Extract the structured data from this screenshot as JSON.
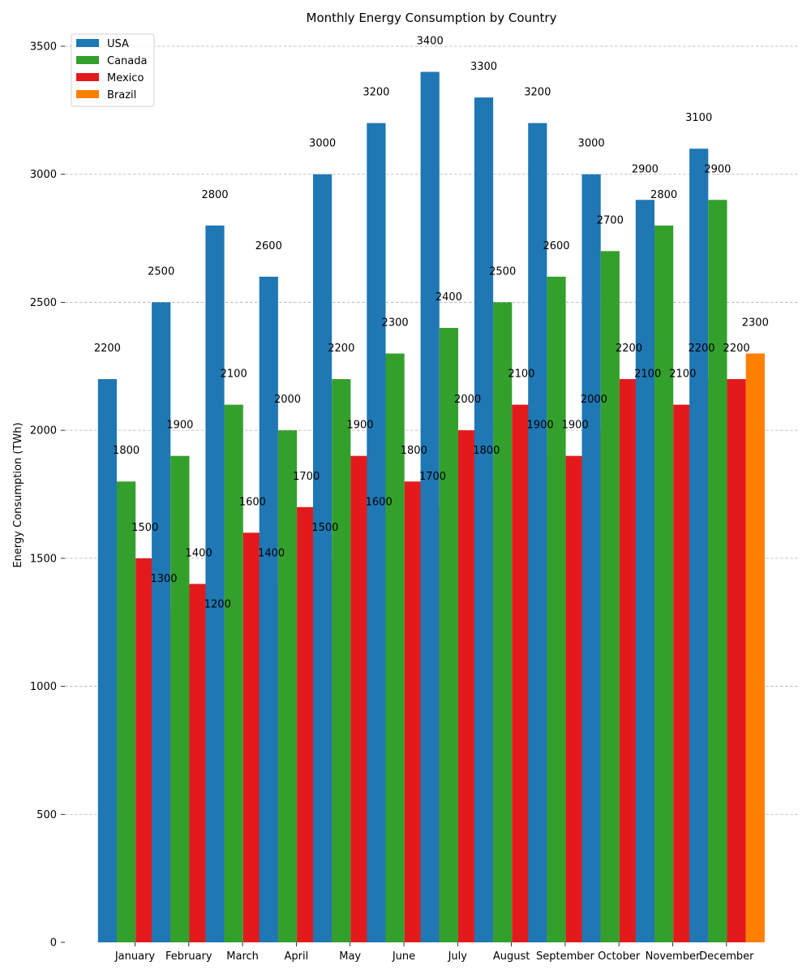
{
  "chart_data": {
    "type": "bar",
    "title": "Monthly Energy Consumption by Country",
    "xlabel": "",
    "ylabel": "Energy Consumption (TWh)",
    "ylim": [
      0,
      3500
    ],
    "yticks": [
      0,
      500,
      1000,
      1500,
      2000,
      2500,
      3000,
      3500
    ],
    "grid": "y-dashed",
    "legend_position": "upper-left",
    "categories": [
      "January",
      "February",
      "March",
      "April",
      "May",
      "June",
      "July",
      "August",
      "September",
      "October",
      "November",
      "December"
    ],
    "series": [
      {
        "name": "USA",
        "color": "#1f77b4",
        "values": [
          2200,
          2500,
          2800,
          2600,
          3000,
          3200,
          3400,
          3300,
          3200,
          3000,
          2900,
          3100
        ]
      },
      {
        "name": "Canada",
        "color": "#33a02c",
        "values": [
          1800,
          1900,
          2100,
          2000,
          2200,
          2300,
          2400,
          2500,
          2600,
          2700,
          2800,
          2900
        ]
      },
      {
        "name": "Mexico",
        "color": "#e31a1c",
        "values": [
          1500,
          1400,
          1600,
          1700,
          1900,
          1800,
          2000,
          2100,
          1900,
          2200,
          2100,
          2200
        ]
      },
      {
        "name": "Brazil",
        "color": "#ff7f00",
        "values": [
          1300,
          1200,
          1400,
          1500,
          1600,
          1700,
          1800,
          1900,
          2000,
          2100,
          2200,
          2300
        ]
      }
    ]
  }
}
